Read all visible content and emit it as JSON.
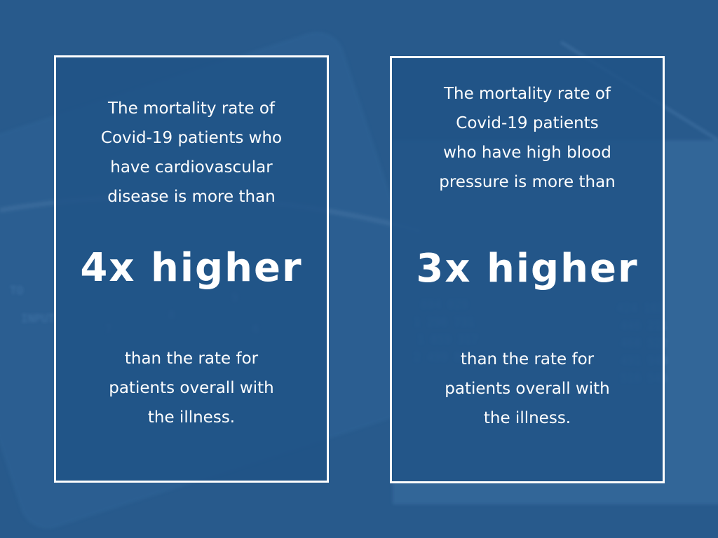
{
  "cards": [
    {
      "intro": "The mortality rate of\nCovid-19 patients who\nhave cardiovascular\ndisease is more than",
      "multiplier": "4x higher",
      "comparison": "than the rate for\npatients overall with\nthe illness."
    },
    {
      "intro": "The mortality rate of\nCovid-19 patients\nwho have high blood\npressure is more than",
      "multiplier": "3x higher",
      "comparison": "than the rate for\npatients overall with\nthe illness."
    }
  ],
  "colors": {
    "background": "#285a8c",
    "panel": "#1f5286",
    "border": "#ffffff",
    "text": "#ffffff"
  }
}
